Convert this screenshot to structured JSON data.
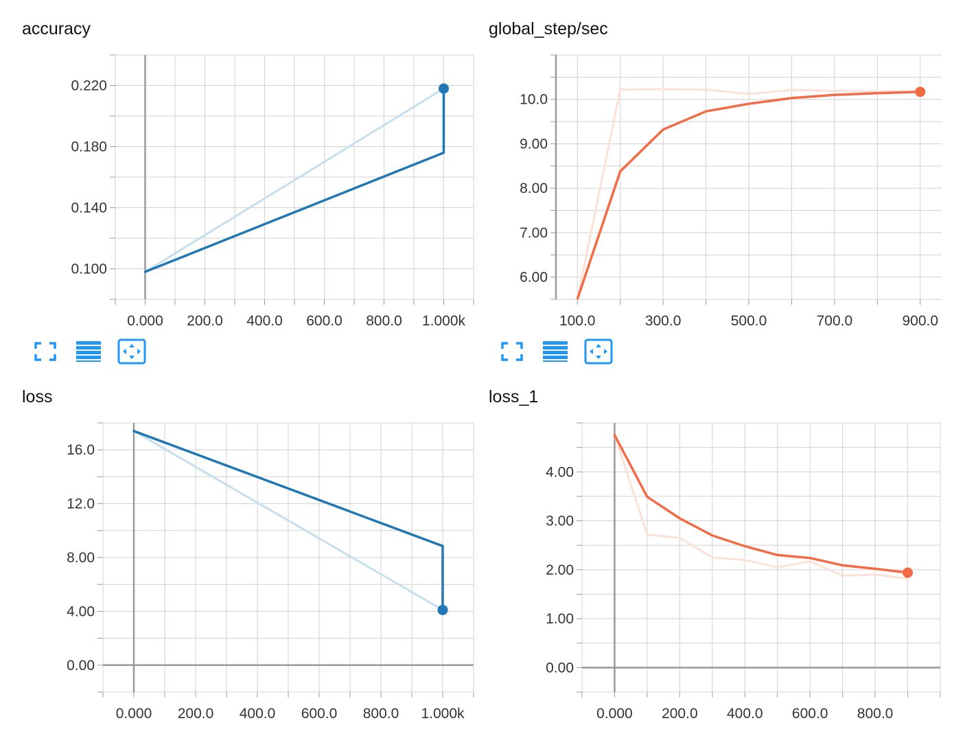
{
  "colors": {
    "blue": "#1f77b4",
    "blue_faint": "#c6dfee",
    "orange": "#f26b45",
    "orange_faint": "#fde0d8",
    "grid": "#d0d0d0",
    "axis": "#999999",
    "icon_blue": "#2196f3"
  },
  "toolbar_icons": [
    "fullscreen-icon",
    "list-icon",
    "fit-domain-icon"
  ],
  "chart_data": [
    {
      "type": "line",
      "title": "accuracy",
      "xlim": [
        -100,
        1100
      ],
      "ylim": [
        0.08,
        0.24
      ],
      "x_ticks": [
        0,
        200,
        400,
        600,
        800,
        1000
      ],
      "x_tick_labels": [
        "0.000",
        "200.0",
        "400.0",
        "600.0",
        "800.0",
        "1.000k"
      ],
      "y_ticks": [
        0.1,
        0.14,
        0.18,
        0.22
      ],
      "y_tick_labels": [
        "0.100",
        "0.140",
        "0.180",
        "0.220"
      ],
      "series": [
        {
          "role": "raw",
          "x": [
            0,
            1000,
            1000
          ],
          "y": [
            0.098,
            0.218,
            0.218
          ]
        },
        {
          "role": "smoothed",
          "x": [
            0,
            1000,
            1000
          ],
          "y": [
            0.098,
            0.176,
            0.218
          ]
        }
      ],
      "grid": true,
      "legend": "none"
    },
    {
      "type": "line",
      "title": "global_step/sec",
      "xlim": [
        50,
        950
      ],
      "ylim": [
        5.5,
        11
      ],
      "x_ticks": [
        100,
        300,
        500,
        700,
        900
      ],
      "x_tick_labels": [
        "100.0",
        "300.0",
        "500.0",
        "700.0",
        "900.0"
      ],
      "y_ticks": [
        6,
        7,
        8,
        9,
        10
      ],
      "y_tick_labels": [
        "6.00",
        "7.00",
        "8.00",
        "9.00",
        "10.0"
      ],
      "series": [
        {
          "role": "raw",
          "x": [
            100,
            200,
            300,
            400,
            500,
            600,
            700,
            800,
            900
          ],
          "y": [
            5.5,
            10.22,
            10.23,
            10.22,
            10.12,
            10.21,
            10.19,
            10.18,
            10.18
          ]
        },
        {
          "role": "smoothed",
          "x": [
            100,
            200,
            300,
            400,
            500,
            600,
            700,
            800,
            900
          ],
          "y": [
            5.5,
            8.38,
            9.32,
            9.73,
            9.9,
            10.03,
            10.1,
            10.14,
            10.17
          ]
        }
      ],
      "grid": true,
      "legend": "none"
    },
    {
      "type": "line",
      "title": "loss",
      "xlim": [
        -100,
        1100
      ],
      "ylim": [
        -2,
        18
      ],
      "x_ticks": [
        0,
        200,
        400,
        600,
        800,
        1000
      ],
      "x_tick_labels": [
        "0.000",
        "200.0",
        "400.0",
        "600.0",
        "800.0",
        "1.000k"
      ],
      "y_ticks": [
        0,
        4,
        8,
        12,
        16
      ],
      "y_tick_labels": [
        "0.00",
        "4.00",
        "8.00",
        "12.0",
        "16.0"
      ],
      "series": [
        {
          "role": "raw",
          "x": [
            0,
            1000,
            1000
          ],
          "y": [
            17.4,
            4.1,
            4.1
          ]
        },
        {
          "role": "smoothed",
          "x": [
            0,
            1000,
            1000
          ],
          "y": [
            17.4,
            8.85,
            4.1
          ]
        }
      ],
      "grid": true,
      "legend": "none"
    },
    {
      "type": "line",
      "title": "loss_1",
      "xlim": [
        -100,
        1000
      ],
      "ylim": [
        -0.5,
        5
      ],
      "x_ticks": [
        0,
        200,
        400,
        600,
        800
      ],
      "x_tick_labels": [
        "0.000",
        "200.0",
        "400.0",
        "600.0",
        "800.0"
      ],
      "y_ticks": [
        0,
        1,
        2,
        3,
        4
      ],
      "y_tick_labels": [
        "0.00",
        "1.00",
        "2.00",
        "3.00",
        "4.00"
      ],
      "series": [
        {
          "role": "raw",
          "x": [
            0,
            100,
            200,
            300,
            400,
            500,
            600,
            700,
            800,
            900
          ],
          "y": [
            4.75,
            2.72,
            2.65,
            2.25,
            2.2,
            2.05,
            2.17,
            1.88,
            1.9,
            1.82
          ]
        },
        {
          "role": "smoothed",
          "x": [
            0,
            100,
            200,
            300,
            400,
            500,
            600,
            700,
            800,
            900
          ],
          "y": [
            4.75,
            3.49,
            3.05,
            2.7,
            2.48,
            2.3,
            2.24,
            2.09,
            2.02,
            1.94
          ]
        }
      ],
      "grid": true,
      "legend": "none"
    }
  ]
}
